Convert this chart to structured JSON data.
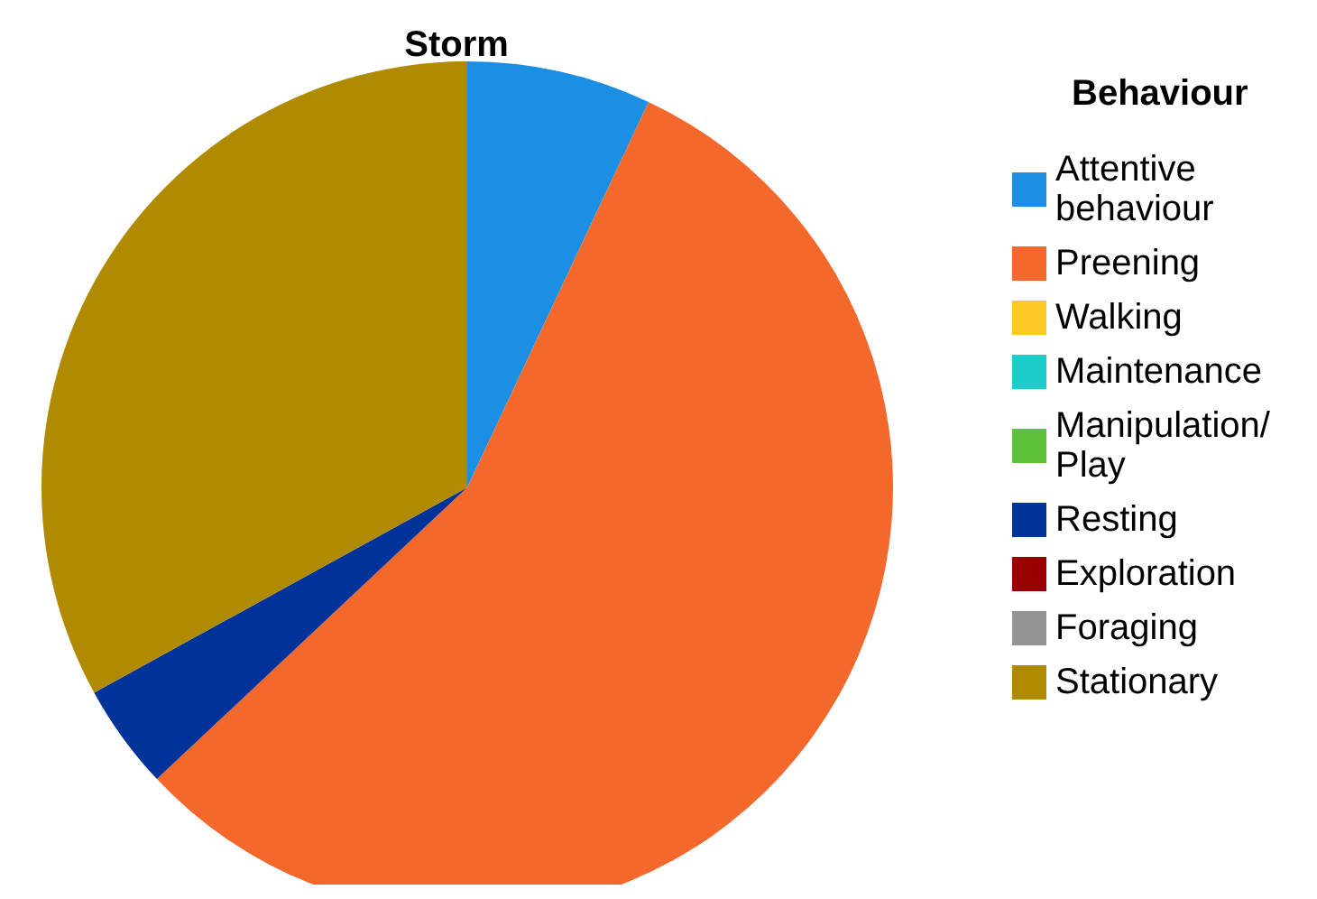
{
  "chart_data": {
    "type": "pie",
    "title": "Storm",
    "legend_title": "Behaviour",
    "legend": "right",
    "categories": [
      "Attentive behaviour",
      "Preening",
      "Walking",
      "Maintenance",
      "Manipulation/ Play",
      "Resting",
      "Exploration",
      "Foraging",
      "Stationary"
    ],
    "values": [
      7,
      56,
      0,
      0,
      0,
      4,
      0,
      0,
      33
    ],
    "colors": [
      "#1a8fe3",
      "#f4682c",
      "#ffc826",
      "#1fcccc",
      "#5dc23a",
      "#003399",
      "#990000",
      "#949494",
      "#b08a00"
    ]
  }
}
